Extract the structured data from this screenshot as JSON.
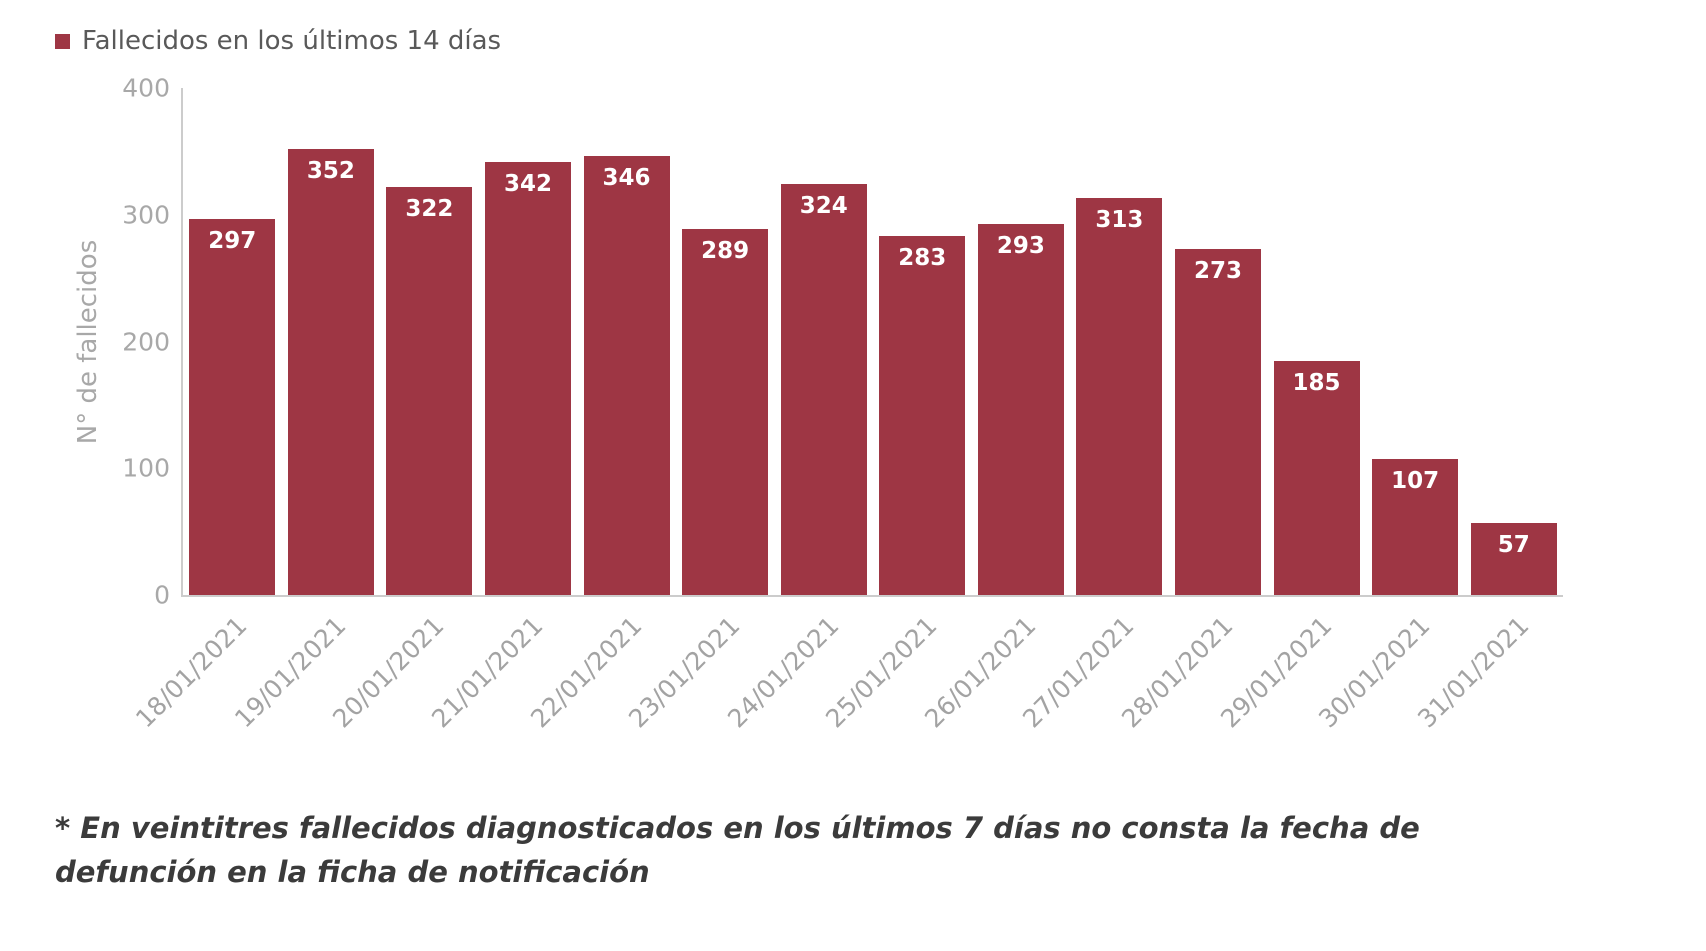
{
  "legend": {
    "label": "Fallecidos en los últimos 14 días"
  },
  "chart_data": {
    "type": "bar",
    "categories": [
      "18/01/2021",
      "19/01/2021",
      "20/01/2021",
      "21/01/2021",
      "22/01/2021",
      "23/01/2021",
      "24/01/2021",
      "25/01/2021",
      "26/01/2021",
      "27/01/2021",
      "28/01/2021",
      "29/01/2021",
      "30/01/2021",
      "31/01/2021"
    ],
    "values": [
      297,
      352,
      322,
      342,
      346,
      289,
      324,
      283,
      293,
      313,
      273,
      185,
      107,
      57
    ],
    "title": "",
    "xlabel": "",
    "ylabel": "N° de fallecidos",
    "ylim": [
      0,
      400
    ],
    "yticks": [
      0,
      100,
      200,
      300,
      400
    ],
    "grid": false,
    "legend_position": "top-left",
    "legend_entries": [
      "Fallecidos en los últimos 14 días"
    ],
    "bar_color": "#9e3644",
    "value_label_color": "#ffffff",
    "axis_text_color": "#a8a8a8"
  },
  "footnote": "* En veintitres fallecidos diagnosticados en los últimos 7 días no consta la fecha de defunción en la ficha de notificación"
}
